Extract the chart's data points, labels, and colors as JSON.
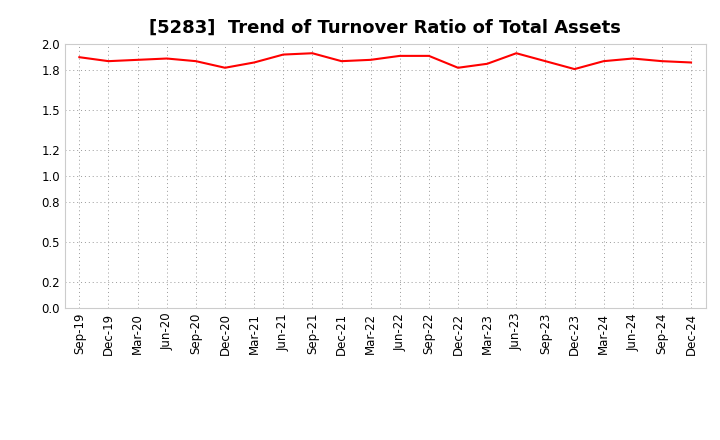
{
  "title": "[5283]  Trend of Turnover Ratio of Total Assets",
  "x_labels": [
    "Sep-19",
    "Dec-19",
    "Mar-20",
    "Jun-20",
    "Sep-20",
    "Dec-20",
    "Mar-21",
    "Jun-21",
    "Sep-21",
    "Dec-21",
    "Mar-22",
    "Jun-22",
    "Sep-22",
    "Dec-22",
    "Mar-23",
    "Jun-23",
    "Sep-23",
    "Dec-23",
    "Mar-24",
    "Jun-24",
    "Sep-24",
    "Dec-24"
  ],
  "y_values": [
    1.9,
    1.87,
    1.88,
    1.89,
    1.87,
    1.82,
    1.86,
    1.92,
    1.93,
    1.87,
    1.88,
    1.91,
    1.91,
    1.82,
    1.85,
    1.93,
    1.87,
    1.81,
    1.87,
    1.89,
    1.87,
    1.86
  ],
  "line_color": "#FF0000",
  "line_width": 1.5,
  "background_color": "#FFFFFF",
  "grid_color": "#AAAAAA",
  "ylim": [
    0.0,
    2.0
  ],
  "yticks": [
    0.0,
    0.2,
    0.5,
    0.8,
    1.0,
    1.2,
    1.5,
    1.8,
    2.0
  ],
  "title_fontsize": 13,
  "tick_fontsize": 8.5
}
